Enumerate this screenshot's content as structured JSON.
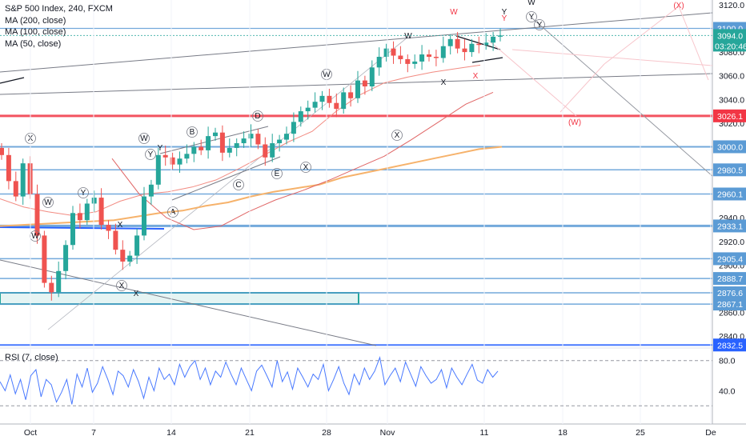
{
  "chart_data": {
    "type": "candlestick",
    "title": "S&P 500 Index, 240, FXCM",
    "indicators": [
      "MA (200, close)",
      "MA (100, close)",
      "MA (50, close)"
    ],
    "price_axis": {
      "ticks": [
        3120.0,
        3100.0,
        3080.0,
        3060.0,
        3040.0,
        3020.0,
        3000.0,
        2980.0,
        2960.0,
        2940.0,
        2920.0,
        2900.0,
        2880.0,
        2860.0,
        2840.0
      ],
      "ylim": [
        2832,
        3124
      ]
    },
    "time_axis": {
      "labels": [
        "Oct",
        "7",
        "14",
        "21",
        "28",
        "Nov",
        "11",
        "18",
        "25",
        "De"
      ]
    },
    "current_price": "3094.0",
    "countdown": "03:20:46",
    "horizontal_levels": [
      {
        "value": 3100.0,
        "label": "3100.0",
        "color": "#5b9bd5",
        "width": 1.2
      },
      {
        "value": 3026.1,
        "label": "3026.1",
        "color": "#f23645",
        "width": 3
      },
      {
        "value": 3000.0,
        "label": "3000.0",
        "color": "#5b9bd5",
        "width": 2
      },
      {
        "value": 2980.5,
        "label": "2980.5",
        "color": "#5b9bd5",
        "width": 1.5
      },
      {
        "value": 2960.1,
        "label": "2960.1",
        "color": "#5b9bd5",
        "width": 1.5
      },
      {
        "value": 2933.1,
        "label": "2933.1",
        "color": "#5b9bd5",
        "width": 3
      },
      {
        "value": 2905.4,
        "label": "2905.4",
        "color": "#5b9bd5",
        "width": 1.5
      },
      {
        "value": 2888.7,
        "label": "2888.7",
        "color": "#5b9bd5",
        "width": 1.5
      },
      {
        "value": 2876.6,
        "label": "2876.6",
        "color": "#5b9bd5",
        "width": 1.5
      },
      {
        "value": 2867.1,
        "label": "2867.1",
        "color": "#5b9bd5",
        "width": 1.5
      },
      {
        "value": 2832.5,
        "label": "2832.5",
        "color": "#2962ff",
        "width": 2
      }
    ],
    "support_zone": [
      2867.1,
      2876.6
    ],
    "price_series": [
      2993,
      2971,
      2958,
      2986,
      2960,
      2925,
      2885,
      2877,
      2895,
      2917,
      2944,
      2938,
      2952,
      2957,
      2934,
      2929,
      2913,
      2903,
      2908,
      2925,
      2958,
      2968,
      2993,
      2991,
      2985,
      2990,
      2994,
      3000,
      2997,
      3009,
      3012,
      2995,
      2999,
      3003,
      3007,
      3011,
      3002,
      2991,
      3003,
      3006,
      3011,
      3021,
      3030,
      3033,
      3038,
      3043,
      3037,
      3032,
      3046,
      3041,
      3056,
      3051,
      3067,
      3076,
      3083,
      3077,
      3074,
      3070,
      3072,
      3078,
      3076,
      3075,
      3085,
      3091,
      3083,
      3080,
      3087,
      3086,
      3088,
      3093,
      3094
    ],
    "ma_series": {
      "ma200": [
        2933,
        2934,
        2935,
        2936,
        2937,
        2938,
        2941,
        2944,
        2946,
        2950,
        2953,
        2958,
        2962,
        2965,
        2968,
        2974,
        2978,
        2982,
        2986,
        2990,
        2994,
        2998,
        3000
      ],
      "ma100": [
        2956,
        2949,
        2945,
        2942,
        2945,
        2954,
        2960,
        2962,
        2966,
        2972,
        2982,
        2993,
        3004,
        3013,
        3030,
        3044,
        3054,
        3059,
        3063,
        3066,
        3069
      ],
      "ma50": [
        2990,
        2960,
        2940,
        2930,
        2933,
        2945,
        2955,
        2963,
        2972,
        2982,
        2992,
        3006,
        3021,
        3036,
        3046
      ]
    },
    "wave_labels": {
      "black": [
        "(X)",
        "(W)",
        "(Y)",
        "(W)",
        "(X)",
        "(W)",
        "(Y)",
        "(A)",
        "(B)",
        "(C)",
        "(D)",
        "(E)",
        "(X)",
        "(X)",
        "(W)",
        "W",
        "X",
        "X",
        "Y",
        "X",
        "Y",
        "W",
        "(Y)",
        "(Y)"
      ],
      "red": [
        "W",
        "X",
        "Y",
        "(W)",
        "(X)"
      ]
    },
    "rsi": {
      "label": "RSI (7, close)",
      "ticks": [
        80.0,
        40.0
      ],
      "overbought": 80,
      "oversold": 20,
      "values": [
        52,
        40,
        61,
        36,
        55,
        28,
        60,
        68,
        32,
        55,
        48,
        25,
        38,
        55,
        22,
        62,
        45,
        70,
        38,
        50,
        72,
        55,
        35,
        66,
        60,
        45,
        68,
        52,
        30,
        58,
        40,
        70,
        55,
        62,
        48,
        75,
        58,
        72,
        80,
        55,
        70,
        48,
        66,
        58,
        78,
        62,
        48,
        70,
        55,
        40,
        66,
        74,
        60,
        45,
        80,
        52,
        65,
        42,
        70,
        58,
        45,
        62,
        55,
        75,
        40,
        55,
        72,
        50,
        35,
        62,
        48,
        70,
        55,
        66,
        84,
        48,
        60,
        70,
        52,
        78,
        62,
        46,
        72,
        60,
        50,
        55,
        68,
        44,
        70,
        58,
        48,
        62,
        75,
        54,
        50,
        68,
        58,
        66
      ]
    }
  }
}
